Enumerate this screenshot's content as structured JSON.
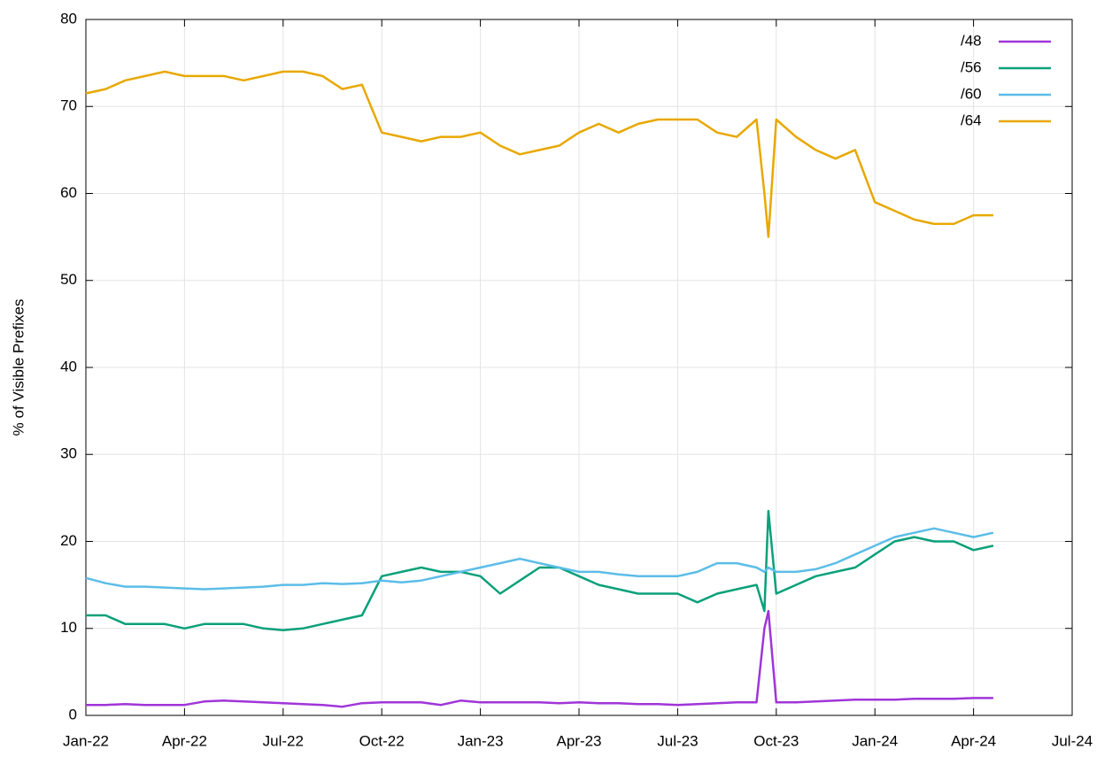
{
  "chart_data": {
    "type": "line",
    "y_label": "% of Visible Prefixes",
    "x": [
      2022.0,
      2022.05,
      2022.1,
      2022.15,
      2022.2,
      2022.25,
      2022.3,
      2022.35,
      2022.4,
      2022.45,
      2022.5,
      2022.55,
      2022.6,
      2022.65,
      2022.7,
      2022.75,
      2022.8,
      2022.85,
      2022.9,
      2022.95,
      2023.0,
      2023.05,
      2023.1,
      2023.15,
      2023.2,
      2023.25,
      2023.3,
      2023.35,
      2023.4,
      2023.45,
      2023.5,
      2023.55,
      2023.6,
      2023.65,
      2023.7,
      2023.72,
      2023.73,
      2023.75,
      2023.8,
      2023.85,
      2023.9,
      2023.95,
      2024.0,
      2024.05,
      2024.1,
      2024.15,
      2024.2,
      2024.25,
      2024.3
    ],
    "series": [
      {
        "name": "/48",
        "color": "#a035d8",
        "values": [
          1.2,
          1.2,
          1.3,
          1.2,
          1.2,
          1.2,
          1.6,
          1.7,
          1.6,
          1.5,
          1.4,
          1.3,
          1.2,
          1.0,
          1.4,
          1.5,
          1.5,
          1.5,
          1.2,
          1.7,
          1.5,
          1.5,
          1.5,
          1.5,
          1.4,
          1.5,
          1.4,
          1.4,
          1.3,
          1.3,
          1.2,
          1.3,
          1.4,
          1.5,
          1.5,
          10,
          12,
          1.5,
          1.5,
          1.6,
          1.7,
          1.8,
          1.8,
          1.8,
          1.9,
          1.9,
          1.9,
          2.0,
          2.0
        ]
      },
      {
        "name": "/56",
        "color": "#0aa07a",
        "values": [
          11.5,
          11.5,
          10.5,
          10.5,
          10.5,
          10,
          10.5,
          10.5,
          10.5,
          10,
          9.8,
          10,
          10.5,
          11,
          11.5,
          16,
          16.5,
          17,
          16.5,
          16.5,
          16,
          14,
          15.5,
          17,
          17,
          16,
          15,
          14.5,
          14,
          14,
          14,
          13,
          14,
          14.5,
          15,
          12,
          23.5,
          14,
          15,
          16,
          16.5,
          17,
          18.5,
          20,
          20.5,
          20,
          20,
          19,
          19.5
        ]
      },
      {
        "name": "/60",
        "color": "#5cbde8",
        "values": [
          15.8,
          15.2,
          14.8,
          14.8,
          14.7,
          14.6,
          14.5,
          14.6,
          14.7,
          14.8,
          15,
          15,
          15.2,
          15.1,
          15.2,
          15.5,
          15.3,
          15.5,
          16,
          16.5,
          17,
          17.5,
          18,
          17.5,
          17,
          16.5,
          16.5,
          16.2,
          16,
          16,
          16,
          16.5,
          17.5,
          17.5,
          17,
          16.5,
          17,
          16.5,
          16.5,
          16.8,
          17.5,
          18.5,
          19.5,
          20.5,
          21,
          21.5,
          21,
          20.5,
          21
        ]
      },
      {
        "name": "/64",
        "color": "#e8a800",
        "values": [
          71.5,
          72,
          73,
          73.5,
          74,
          73.5,
          73.5,
          73.5,
          73,
          73.5,
          74,
          74,
          73.5,
          72,
          72.5,
          67,
          66.5,
          66,
          66.5,
          66.5,
          67,
          65.5,
          64.5,
          65,
          65.5,
          67,
          68,
          67,
          68,
          68.5,
          68.5,
          68.5,
          67,
          66.5,
          68.5,
          60,
          55,
          68.5,
          66.5,
          65,
          64,
          65,
          59,
          58,
          57,
          56.5,
          56.5,
          57.5,
          57.5
        ]
      }
    ],
    "xlim": [
      2022,
      2024.5
    ],
    "xticks": [
      {
        "value": 2022,
        "label": "Jan-22"
      },
      {
        "value": 2022.25,
        "label": "Apr-22"
      },
      {
        "value": 2022.5,
        "label": "Jul-22"
      },
      {
        "value": 2022.75,
        "label": "Oct-22"
      },
      {
        "value": 2023,
        "label": "Jan-23"
      },
      {
        "value": 2023.25,
        "label": "Apr-23"
      },
      {
        "value": 2023.5,
        "label": "Jul-23"
      },
      {
        "value": 2023.75,
        "label": "Oct-23"
      },
      {
        "value": 2024,
        "label": "Jan-24"
      },
      {
        "value": 2024.25,
        "label": "Apr-24"
      },
      {
        "value": 2024.5,
        "label": "Jul-24"
      }
    ],
    "ylim": [
      0,
      80
    ],
    "yticks": [
      0,
      10,
      20,
      30,
      40,
      50,
      60,
      70,
      80
    ],
    "grid": true,
    "legend": "top-right"
  }
}
